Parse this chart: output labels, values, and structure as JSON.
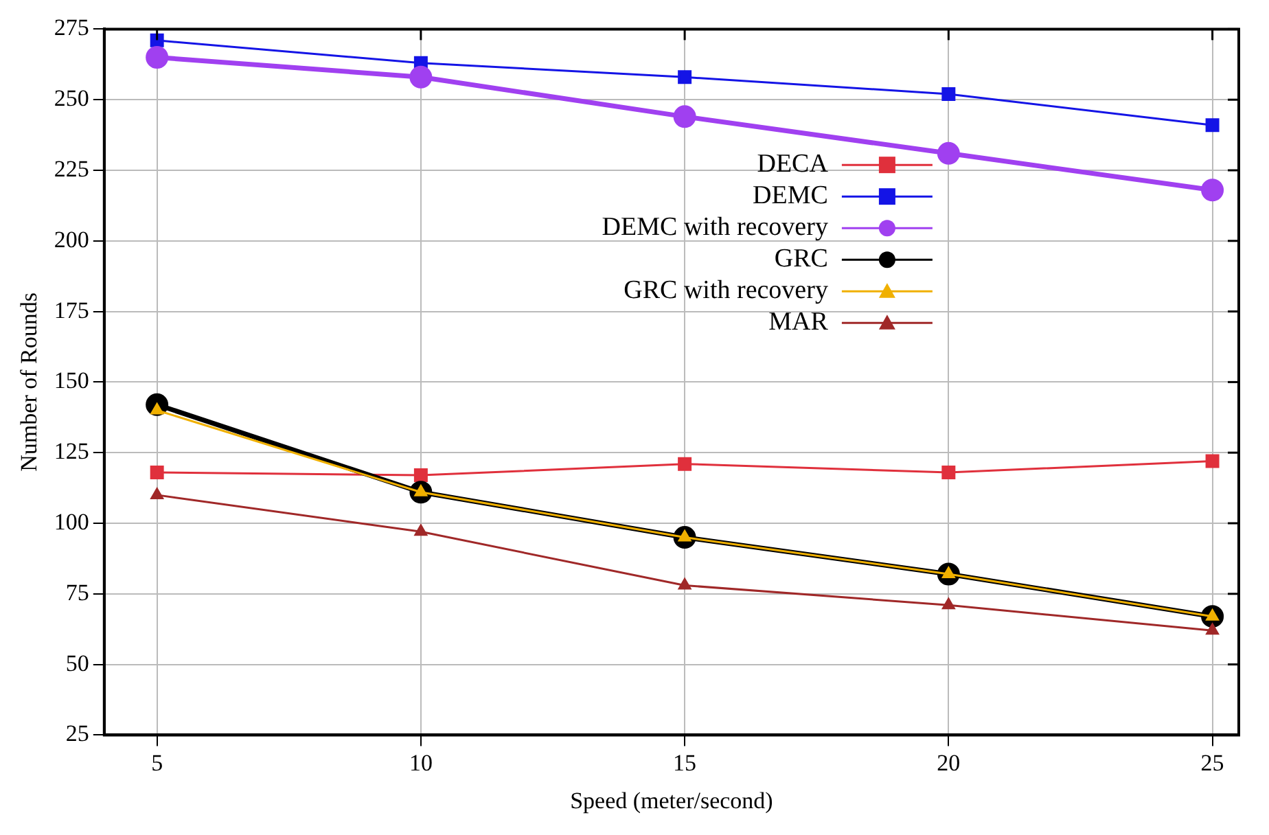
{
  "chart_data": {
    "type": "line",
    "xlabel": "Speed (meter/second)",
    "ylabel": "Number of Rounds",
    "x": [
      5,
      10,
      15,
      20,
      25
    ],
    "series": [
      {
        "name": "DECA",
        "color": "#e0303c",
        "marker": "square",
        "values": [
          118,
          117,
          121,
          118,
          122
        ]
      },
      {
        "name": "DEMC",
        "color": "#1414e6",
        "marker": "square",
        "values": [
          271,
          263,
          258,
          252,
          241
        ]
      },
      {
        "name": "DEMC with recovery",
        "color": "#a040f0",
        "marker": "circle",
        "values": [
          265,
          258,
          244,
          231,
          218
        ]
      },
      {
        "name": "GRC",
        "color": "#000000",
        "marker": "circle",
        "values": [
          142,
          111,
          95,
          82,
          67
        ]
      },
      {
        "name": "GRC with recovery",
        "color": "#f0b000",
        "marker": "triangle",
        "values": [
          140,
          111,
          95,
          82,
          67
        ]
      },
      {
        "name": "MAR",
        "color": "#a02828",
        "marker": "triangle",
        "values": [
          110,
          97,
          78,
          71,
          62
        ]
      }
    ],
    "xlim": [
      4,
      25.5
    ],
    "xticks": [
      5,
      10,
      15,
      20,
      25
    ],
    "ylim": [
      25,
      275
    ],
    "yticks": [
      25,
      50,
      75,
      100,
      125,
      150,
      175,
      200,
      225,
      250,
      275
    ],
    "grid": true,
    "legend": "top right",
    "line_style": "solid"
  }
}
